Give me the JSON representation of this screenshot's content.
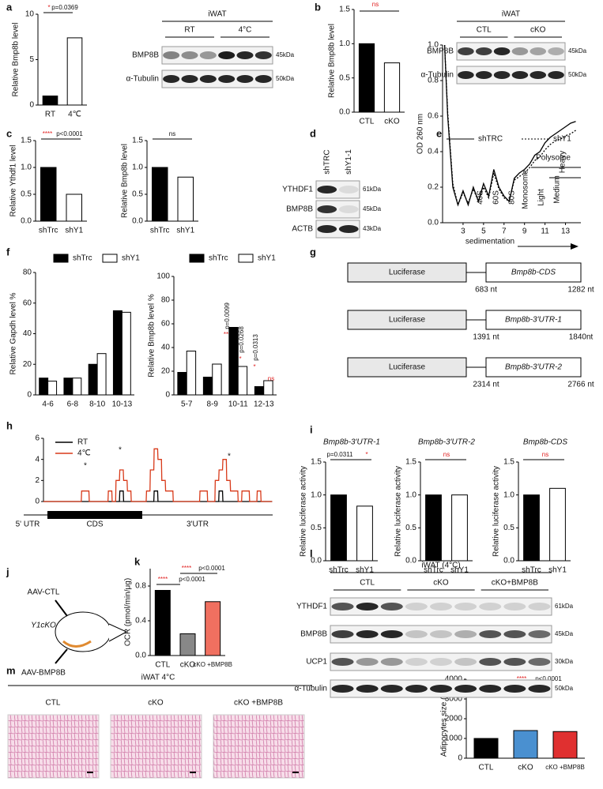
{
  "chart_data": [
    {
      "type": "bar",
      "ylabel": "Relative Bmp8b level",
      "categories": [
        "RT",
        "4℃"
      ],
      "values": [
        1.0,
        7.4
      ],
      "colors": [
        "#000000",
        "#ffffff"
      ],
      "ylim": [
        0,
        10
      ],
      "yticks": [
        0,
        5,
        10
      ],
      "annotations": [
        {
          "text": "*",
          "color": "#e02020"
        },
        {
          "text": "p=0.0369",
          "color": "#111111"
        }
      ]
    },
    {
      "type": "bar",
      "ylabel": "Relative Bmp8b level",
      "categories": [
        "CTL",
        "cKO"
      ],
      "values": [
        1.0,
        0.72
      ],
      "colors": [
        "#000000",
        "#ffffff"
      ],
      "ylim": [
        0,
        1.5
      ],
      "yticks": [
        {
          "value": 0,
          "label": "0.0"
        },
        0.5,
        {
          "value": 1,
          "label": "1.0"
        },
        1.5
      ],
      "annotations": [
        {
          "text": "ns",
          "color": "#e02020"
        }
      ]
    },
    {
      "type": "bar",
      "ylabel": "Relative Ythdf1 level",
      "categories": [
        "shTrc",
        "shY1"
      ],
      "values": [
        1.0,
        0.5
      ],
      "colors": [
        "#000000",
        "#ffffff"
      ],
      "ylim": [
        0,
        1.5
      ],
      "yticks": [
        {
          "value": 0,
          "label": "0.0"
        },
        0.5,
        {
          "value": 1,
          "label": "1.0"
        },
        1.5
      ],
      "annotations": [
        {
          "text": "****",
          "color": "#e02020"
        },
        {
          "text": "p<0.0001",
          "color": "#111111"
        }
      ]
    },
    {
      "type": "bar",
      "ylabel": "Relative Bmp8b level",
      "categories": [
        "shTrc",
        "shY1"
      ],
      "values": [
        1.0,
        0.82
      ],
      "colors": [
        "#000000",
        "#ffffff"
      ],
      "ylim": [
        0,
        1.5
      ],
      "yticks": [
        {
          "value": 0,
          "label": "0.0"
        },
        0.5,
        {
          "value": 1,
          "label": "1.0"
        },
        1.5
      ],
      "annotations": [
        {
          "text": "ns",
          "color": "#111111"
        }
      ]
    },
    {
      "type": "line",
      "ylabel": "OD 260 nm",
      "xlabel": "sedimentation",
      "x": [
        1.2,
        1.5,
        2,
        2.5,
        3,
        3.5,
        4,
        4.5,
        5,
        5.5,
        6,
        6.5,
        7,
        7.5,
        8,
        8.5,
        9,
        9.5,
        10,
        10.5,
        11,
        11.5,
        12,
        12.5,
        13,
        13.5,
        14
      ],
      "series": [
        {
          "name": "shTRC",
          "color": "#000000",
          "dash": false,
          "values": [
            1.0,
            0.6,
            0.2,
            0.1,
            0.18,
            0.1,
            0.2,
            0.12,
            0.22,
            0.15,
            0.3,
            0.2,
            0.15,
            0.12,
            0.25,
            0.28,
            0.3,
            0.33,
            0.38,
            0.4,
            0.45,
            0.48,
            0.5,
            0.52,
            0.54,
            0.56,
            0.57
          ]
        },
        {
          "name": "shY1",
          "color": "#000000",
          "dash": true,
          "values": [
            1.0,
            0.62,
            0.22,
            0.1,
            0.17,
            0.11,
            0.19,
            0.12,
            0.2,
            0.14,
            0.28,
            0.19,
            0.14,
            0.12,
            0.24,
            0.26,
            0.28,
            0.31,
            0.35,
            0.37,
            0.41,
            0.44,
            0.46,
            0.47,
            0.49,
            0.5,
            0.52
          ]
        }
      ],
      "xlim": [
        1,
        14.5
      ],
      "xticks": [
        3,
        5,
        7,
        9,
        11,
        13
      ],
      "ylim": [
        0,
        1.0
      ],
      "yticks": [
        {
          "value": 0,
          "label": "0.0"
        },
        0.2,
        0.4,
        0.6,
        0.8,
        {
          "value": 1,
          "label": "1.0"
        }
      ],
      "peaks": [
        "40S",
        "60S",
        "80S",
        "Monosome",
        "Light",
        "Medium",
        "Heavy"
      ],
      "region": "Polysome"
    },
    {
      "type": "bar",
      "ylabel": "Relative Gapdh level %",
      "categories": [
        "4-6",
        "6-8",
        "8-10",
        "10-13"
      ],
      "series": [
        {
          "name": "shTrc",
          "color": "#000000",
          "values": [
            11,
            11,
            20,
            55
          ]
        },
        {
          "name": "shY1",
          "color": "#ffffff",
          "values": [
            9,
            11,
            27,
            54
          ]
        }
      ],
      "ylim": [
        0,
        80
      ],
      "yticks": [
        0,
        20,
        40,
        60,
        80
      ],
      "annotations": []
    },
    {
      "type": "bar",
      "ylabel": "Relative Bmp8b level %",
      "categories": [
        "5-7",
        "8-9",
        "10-11",
        "12-13"
      ],
      "series": [
        {
          "name": "shTrc",
          "color": "#000000",
          "values": [
            19,
            15,
            57,
            7
          ]
        },
        {
          "name": "shY1",
          "color": "#ffffff",
          "values": [
            37,
            26,
            24,
            12
          ]
        }
      ],
      "ylim": [
        0,
        100
      ],
      "yticks": [
        0,
        20,
        40,
        60,
        80,
        100
      ],
      "annotations": [
        {
          "text": "**",
          "color": "#e02020"
        },
        {
          "text": "p=0.0099",
          "color": "#111111"
        },
        {
          "text": "*",
          "color": "#e02020"
        },
        {
          "text": "p=0.0268",
          "color": "#111111"
        },
        {
          "text": "*",
          "color": "#e02020"
        },
        {
          "text": "p=0.0313",
          "color": "#111111"
        },
        {
          "text": "ns",
          "color": "#e02020"
        }
      ]
    },
    {
      "type": "step",
      "x": [
        0,
        1,
        2,
        3,
        4,
        5,
        6,
        7,
        8,
        9,
        10,
        11,
        12,
        13,
        14,
        15,
        16,
        17,
        18,
        19,
        20,
        21,
        22,
        23,
        24,
        25,
        26,
        27,
        28,
        29,
        30,
        31,
        32,
        33,
        34,
        35,
        36,
        37,
        38,
        39,
        40,
        41,
        42,
        43,
        44,
        45,
        46,
        47,
        48,
        49,
        50,
        51,
        52,
        53,
        54,
        55,
        56,
        57,
        58,
        59
      ],
      "series": [
        {
          "name": "RT",
          "color": "#000000",
          "values": [
            0,
            0,
            0,
            0,
            0,
            0,
            0,
            0,
            0,
            0,
            0,
            0,
            0,
            0,
            0,
            0,
            0,
            0,
            0,
            0,
            1,
            0,
            0,
            0,
            0,
            0,
            0,
            0,
            0,
            1,
            0,
            0,
            0,
            0,
            0,
            0,
            0,
            0,
            0,
            0,
            0,
            0,
            0,
            0,
            0,
            0,
            1,
            0,
            0,
            0,
            0,
            0,
            0,
            0,
            0,
            0,
            0,
            0,
            0,
            0
          ]
        },
        {
          "name": "4℃",
          "color": "#d83a1a",
          "values": [
            0,
            0,
            0,
            0,
            0,
            0,
            0,
            0,
            0,
            0,
            1,
            1,
            0,
            0,
            0,
            0,
            0,
            1,
            0,
            2,
            3,
            2,
            1,
            0,
            0,
            0,
            0,
            1,
            3,
            5,
            4,
            2,
            1,
            1,
            0,
            0,
            0,
            0,
            0,
            0,
            0,
            1,
            1,
            0,
            0,
            2,
            3,
            4,
            2,
            1,
            1,
            0,
            1,
            1,
            0,
            0,
            1,
            0,
            0,
            0
          ]
        }
      ],
      "ylim": [
        0,
        6
      ],
      "yticks": [
        0,
        2,
        4,
        6
      ],
      "stars": [
        "*",
        "*",
        "*"
      ],
      "regions": [
        "5' UTR",
        "CDS",
        "3'UTR"
      ]
    },
    {
      "type": "bar",
      "title": "Bmp8b-3'UTR-1",
      "ylabel": "Relative luciferase activity",
      "categories": [
        "shTrc",
        "shY1"
      ],
      "values": [
        1.0,
        0.83
      ],
      "colors": [
        "#000000",
        "#ffffff"
      ],
      "ylim": [
        0,
        1.5
      ],
      "yticks": [
        {
          "value": 0,
          "label": "0.0"
        },
        0.5,
        {
          "value": 1,
          "label": "1.0"
        },
        1.5
      ],
      "annotations": [
        {
          "text": "p=0.0311",
          "color": "#111111"
        },
        {
          "text": "*",
          "color": "#e02020"
        }
      ]
    },
    {
      "type": "bar",
      "title": "Bmp8b-3'UTR-2",
      "ylabel": "Relative luciferase activity",
      "categories": [
        "shTrc",
        "shY1"
      ],
      "values": [
        1.0,
        1.0
      ],
      "colors": [
        "#000000",
        "#ffffff"
      ],
      "ylim": [
        0,
        1.5
      ],
      "yticks": [
        {
          "value": 0,
          "label": "0.0"
        },
        0.5,
        {
          "value": 1,
          "label": "1.0"
        },
        1.5
      ],
      "annotations": [
        {
          "text": "ns",
          "color": "#e02020"
        }
      ]
    },
    {
      "type": "bar",
      "title": "Bmp8b-CDS",
      "ylabel": "Relative luciferase activity",
      "categories": [
        "shTrc",
        "shY1"
      ],
      "values": [
        1.0,
        1.1
      ],
      "colors": [
        "#000000",
        "#ffffff"
      ],
      "ylim": [
        0,
        1.5
      ],
      "yticks": [
        {
          "value": 0,
          "label": "0.0"
        },
        0.5,
        {
          "value": 1,
          "label": "1.0"
        },
        1.5
      ],
      "annotations": [
        {
          "text": "ns",
          "color": "#e02020"
        }
      ]
    },
    {
      "type": "bar",
      "ylabel": "OCR (pmol/min/μg)",
      "categories": [
        "CTL",
        "cKO",
        "cKO +BMP8B"
      ],
      "values": [
        0.75,
        0.25,
        0.62
      ],
      "colors": [
        "#000000",
        "#888888",
        "#f07060"
      ],
      "ylim": [
        0,
        1.0
      ],
      "yticks": [
        {
          "value": 0,
          "label": "0.0"
        },
        0.4,
        0.8
      ],
      "annotations": [
        {
          "text": "****",
          "color": "#e02020"
        },
        {
          "text": "p<0.0001",
          "color": "#111111"
        },
        {
          "text": "****",
          "color": "#e02020"
        },
        {
          "text": "p<0.0001",
          "color": "#111111"
        }
      ]
    },
    {
      "type": "bar",
      "ylabel": "Adipocytes size (μm²)",
      "categories": [
        "CTL",
        "cKO",
        "cKO +BMP8B"
      ],
      "values": [
        1000,
        1400,
        1350
      ],
      "colors": [
        "#000000",
        "#4a90d0",
        "#e03030"
      ],
      "ylim": [
        0,
        4000
      ],
      "yticks": [
        0,
        1000,
        2000,
        3000,
        4000
      ],
      "annotations": [
        {
          "text": "****",
          "color": "#e02020"
        },
        {
          "text": "p<0.0001",
          "color": "#111111"
        },
        {
          "text": "****",
          "color": "#e02020"
        },
        {
          "text": "p<0.0001",
          "color": "#111111"
        }
      ]
    }
  ],
  "panels": [
    "a",
    "b",
    "c",
    "d",
    "e",
    "f",
    "g",
    "h",
    "i",
    "j",
    "k",
    "l",
    "m"
  ],
  "blots": [
    {
      "title": "iWAT",
      "groups": [
        "RT",
        "4°C"
      ],
      "rows": [
        {
          "name": "BMP8B",
          "kda": "45kDa"
        },
        {
          "name": "α-Tubulin",
          "kda": "50kDa"
        }
      ]
    },
    {
      "title": "iWAT",
      "groups": [
        "CTL",
        "cKO"
      ],
      "rows": [
        {
          "name": "BMP8B",
          "kda": "45kDa"
        },
        {
          "name": "α-Tubulin",
          "kda": "50kDa"
        }
      ]
    },
    {
      "groups": [
        "shTRC",
        "shY1-1"
      ],
      "rows": [
        {
          "name": "YTHDF1",
          "kda": "61kDa"
        },
        {
          "name": "BMP8B",
          "kda": "45kDa"
        },
        {
          "name": "ACTB",
          "kda": "43kDa"
        }
      ]
    },
    {
      "title": "iWAT (4°C)",
      "groups": [
        "CTL",
        "cKO",
        "cKO+BMP8B"
      ],
      "rows": [
        {
          "name": "YTHDF1",
          "kda": "61kDa"
        },
        {
          "name": "BMP8B",
          "kda": "45kDa"
        },
        {
          "name": "UCP1",
          "kda": "30kDa"
        },
        {
          "name": "α-Tubulin",
          "kda": "50kDa"
        }
      ]
    }
  ],
  "constructs": [
    {
      "left": "Luciferase",
      "right": "Bmp8b-CDS",
      "start": "683 nt",
      "end": "1282 nt"
    },
    {
      "left": "Luciferase",
      "right": "Bmp8b-3'UTR-1",
      "start": "1391 nt",
      "end": "1840nt"
    },
    {
      "left": "Luciferase",
      "right": "Bmp8b-3'UTR-2",
      "start": "2314 nt",
      "end": "2766 nt"
    }
  ],
  "mouse": {
    "top": "AAV-CTL",
    "mid": "Y1cKO",
    "bottom": "AAV-BMP8B"
  },
  "histology": {
    "title": "iWAT 4°C",
    "groups": [
      "CTL",
      "cKO",
      "cKO +BMP8B"
    ]
  }
}
